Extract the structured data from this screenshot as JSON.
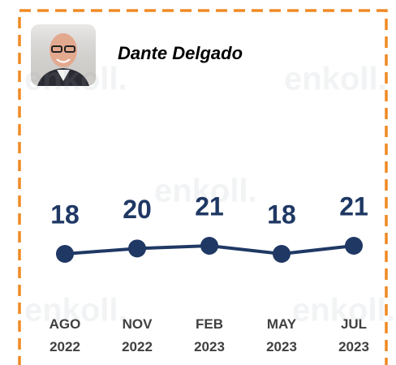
{
  "chart_data": {
    "type": "line",
    "title": "Dante Delgado",
    "watermark": "enkoll.",
    "categories": [
      "AGO 2022",
      "NOV 2022",
      "FEB 2023",
      "MAY 2023",
      "JUL 2023"
    ],
    "values": [
      18,
      20,
      21,
      18,
      21
    ],
    "color": "#1f3864"
  }
}
